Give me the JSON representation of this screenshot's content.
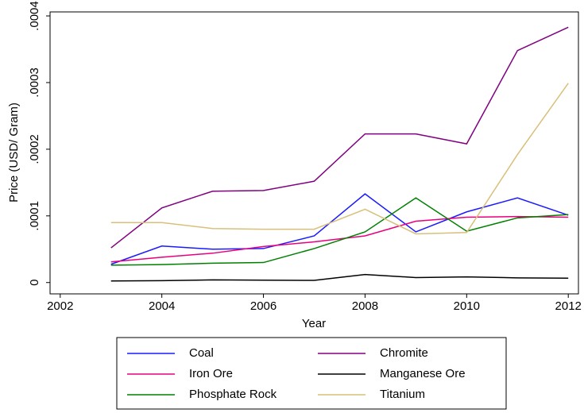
{
  "chart_data": {
    "type": "line",
    "xlabel": "Year",
    "ylabel": "Price (USD/ Gram)",
    "x": [
      2003,
      2004,
      2005,
      2006,
      2007,
      2008,
      2009,
      2010,
      2011,
      2012
    ],
    "series": [
      {
        "name": "Coal",
        "color": "#1a1aff",
        "values": [
          2.74e-05,
          5.48e-05,
          5e-05,
          5.1e-05,
          7e-05,
          0.000133,
          7.6e-05,
          0.000106,
          0.000127,
          0.000101
        ]
      },
      {
        "name": "Chromite",
        "color": "#800080",
        "values": [
          5.2e-05,
          0.000112,
          0.000137,
          0.000138,
          0.000152,
          0.000223,
          0.000223,
          0.000208,
          0.000348,
          0.000383
        ]
      },
      {
        "name": "Iron Ore",
        "color": "#e8007e",
        "values": [
          3.1e-05,
          3.8e-05,
          4.4e-05,
          5.4e-05,
          6.1e-05,
          7e-05,
          9.2e-05,
          9.8e-05,
          9.9e-05,
          9.8e-05
        ]
      },
      {
        "name": "Manganese Ore",
        "color": "#000000",
        "values": [
          2.4e-06,
          2.8e-06,
          4e-06,
          3.5e-06,
          3.2e-06,
          1.2e-05,
          7.5e-06,
          8.5e-06,
          7e-06,
          6.5e-06
        ]
      },
      {
        "name": "Phosphate Rock",
        "color": "#008000",
        "values": [
          2.6e-05,
          2.7e-05,
          2.9e-05,
          3e-05,
          5.1e-05,
          7.6e-05,
          0.000127,
          7.7e-05,
          9.7e-05,
          0.000102
        ]
      },
      {
        "name": "Titanium",
        "color": "#d8c07a",
        "values": [
          9e-05,
          9e-05,
          8.1e-05,
          8e-05,
          8e-05,
          0.00011,
          7.3e-05,
          7.5e-05,
          0.000192,
          0.000299
        ]
      }
    ],
    "xlim": [
      2001.8,
      2012.2
    ],
    "xticks": [
      2002,
      2004,
      2006,
      2008,
      2010,
      2012
    ],
    "ylim": [
      -1.7e-05,
      0.000406
    ],
    "yticks": [
      0,
      {
        "value": 0.0001,
        "label": ".0001"
      },
      {
        "value": 0.0002,
        "label": ".0002"
      },
      {
        "value": 0.0003,
        "label": ".0003"
      },
      {
        "value": 0.0004,
        "label": ".0004"
      }
    ],
    "grid": false
  }
}
